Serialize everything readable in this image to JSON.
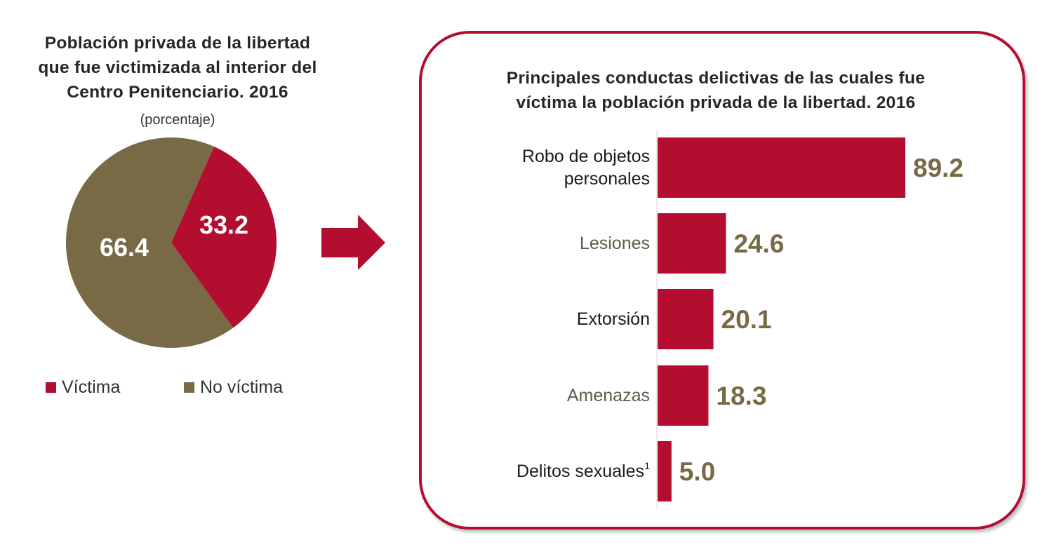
{
  "colors": {
    "victima": "#b30e2f",
    "no_victima": "#776a45",
    "value_label": "#776a45",
    "box_border": "#b30e2f"
  },
  "chart_data": [
    {
      "type": "pie",
      "title": "Población privada de la libertad que fue victimizada al interior del Centro Penitenciario. 2016",
      "title_lines": [
        "Población privada de la libertad",
        "que fue victimizada al interior del",
        "Centro Penitenciario. 2016"
      ],
      "subtitle": "(porcentaje)",
      "slices": [
        {
          "label": "Víctima",
          "value": 33.2,
          "value_label": "33.2",
          "color": "#b30e2f"
        },
        {
          "label": "No víctima",
          "value": 66.4,
          "value_label": "66.4",
          "color": "#776a45"
        }
      ],
      "legend_placement": "bottom"
    },
    {
      "type": "bar",
      "orientation": "horizontal",
      "title": "Principales conductas delictivas de las cuales fue víctima la población privada de la libertad. 2016",
      "title_lines": [
        "Principales conductas delictivas de las cuales fue",
        "víctima la población privada de la libertad. 2016"
      ],
      "categories": [
        {
          "lines": [
            "Robo de objetos",
            "personales"
          ],
          "sup": "",
          "color": "#1a1a1a"
        },
        {
          "lines": [
            "Lesiones"
          ],
          "sup": "",
          "color": "#5f5a4a"
        },
        {
          "lines": [
            "Extorsión"
          ],
          "sup": "",
          "color": "#1a1a1a"
        },
        {
          "lines": [
            "Amenazas"
          ],
          "sup": "",
          "color": "#5f5a4a"
        },
        {
          "lines": [
            "Delitos sexuales"
          ],
          "sup": "1",
          "color": "#1a1a1a"
        }
      ],
      "values": [
        89.2,
        24.6,
        20.1,
        18.3,
        5.0
      ],
      "value_labels": [
        "89.2",
        "24.6",
        "20.1",
        "18.3",
        "5.0"
      ],
      "xlim": [
        0,
        100
      ],
      "grid": false
    }
  ]
}
